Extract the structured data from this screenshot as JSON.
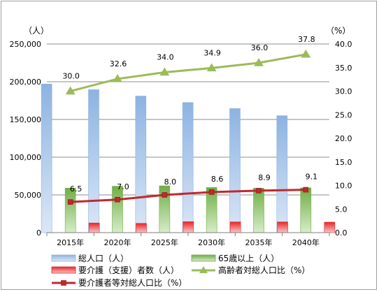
{
  "chart_data": {
    "type": "bar",
    "categories": [
      "2015年",
      "2020年",
      "2025年",
      "2030年",
      "2035年",
      "2040年"
    ],
    "left_axis": {
      "unit": "（人）",
      "ylim": [
        0,
        250000
      ],
      "ticks": [
        "0",
        "50,000",
        "100,000",
        "150,000",
        "200,000",
        "250,000"
      ],
      "tick_values": [
        0,
        50000,
        100000,
        150000,
        200000,
        250000
      ]
    },
    "right_axis": {
      "unit": "（%）",
      "ylim": [
        0,
        40
      ],
      "ticks": [
        "0.0",
        "5.0",
        "10.0",
        "15.0",
        "20.0",
        "25.0",
        "30.0",
        "35.0",
        "40.0"
      ],
      "tick_values": [
        0,
        5,
        10,
        15,
        20,
        25,
        30,
        35,
        40
      ]
    },
    "grid": true,
    "legend_position": "bottom",
    "series": [
      {
        "name": "総人口（人）",
        "type": "bar",
        "axis": "left",
        "color": "#8db3e2",
        "values": [
          197000,
          189500,
          181000,
          172500,
          164500,
          155000
        ]
      },
      {
        "name": "65歳以上（人）",
        "type": "bar",
        "axis": "left",
        "color": "#70ad47",
        "values": [
          59000,
          61500,
          62000,
          59800,
          59000,
          59300
        ]
      },
      {
        "name": "要介護（支援）者数（人）",
        "type": "bar",
        "axis": "left",
        "color": "#e8262a",
        "values": [
          12800,
          12300,
          14500,
          14200,
          14200,
          13900
        ]
      },
      {
        "name": "高齢者対総人口比（%）",
        "type": "line",
        "axis": "right",
        "color": "#9bbb59",
        "marker": "triangle",
        "values": [
          30.0,
          32.6,
          34.0,
          34.9,
          36.0,
          37.8
        ],
        "labels": [
          "30.0",
          "32.6",
          "34.0",
          "34.9",
          "36.0",
          "37.8"
        ]
      },
      {
        "name": "要介護者等対総人口比（%）",
        "type": "line",
        "axis": "right",
        "color": "#c0282d",
        "marker": "square",
        "values": [
          6.5,
          7.0,
          8.0,
          8.6,
          8.9,
          9.1
        ],
        "labels": [
          "6.5",
          "7.0",
          "8.0",
          "8.6",
          "8.9",
          "9.1"
        ]
      }
    ]
  }
}
